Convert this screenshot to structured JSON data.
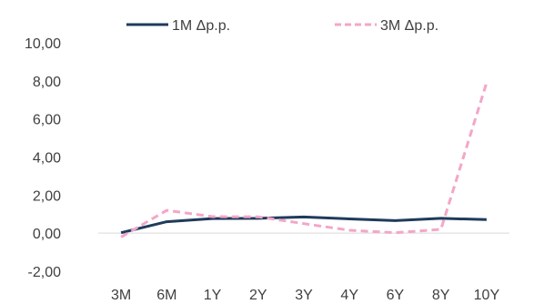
{
  "chart_data": {
    "type": "line",
    "categories": [
      "3M",
      "6M",
      "1Y",
      "2Y",
      "3Y",
      "4Y",
      "6Y",
      "8Y",
      "10Y"
    ],
    "series": [
      {
        "name": "1M Δp.p.",
        "color": "#1f3b5c",
        "dash": "solid",
        "values": [
          0.02,
          0.6,
          0.77,
          0.78,
          0.85,
          0.75,
          0.66,
          0.78,
          0.71
        ]
      },
      {
        "name": "3M Δp.p.",
        "color": "#f4a6c8",
        "dash": "dashed",
        "values": [
          -0.2,
          1.2,
          0.87,
          0.86,
          0.5,
          0.15,
          0.02,
          0.2,
          7.9
        ]
      }
    ],
    "ylim": [
      -2,
      10
    ],
    "yticks": [
      -2,
      0,
      2,
      4,
      6,
      8,
      10
    ],
    "ytick_labels": [
      "-2,00",
      "0,00",
      "2,00",
      "4,00",
      "6,00",
      "8,00",
      "10,00"
    ],
    "grid": false,
    "legend_position": "top"
  }
}
